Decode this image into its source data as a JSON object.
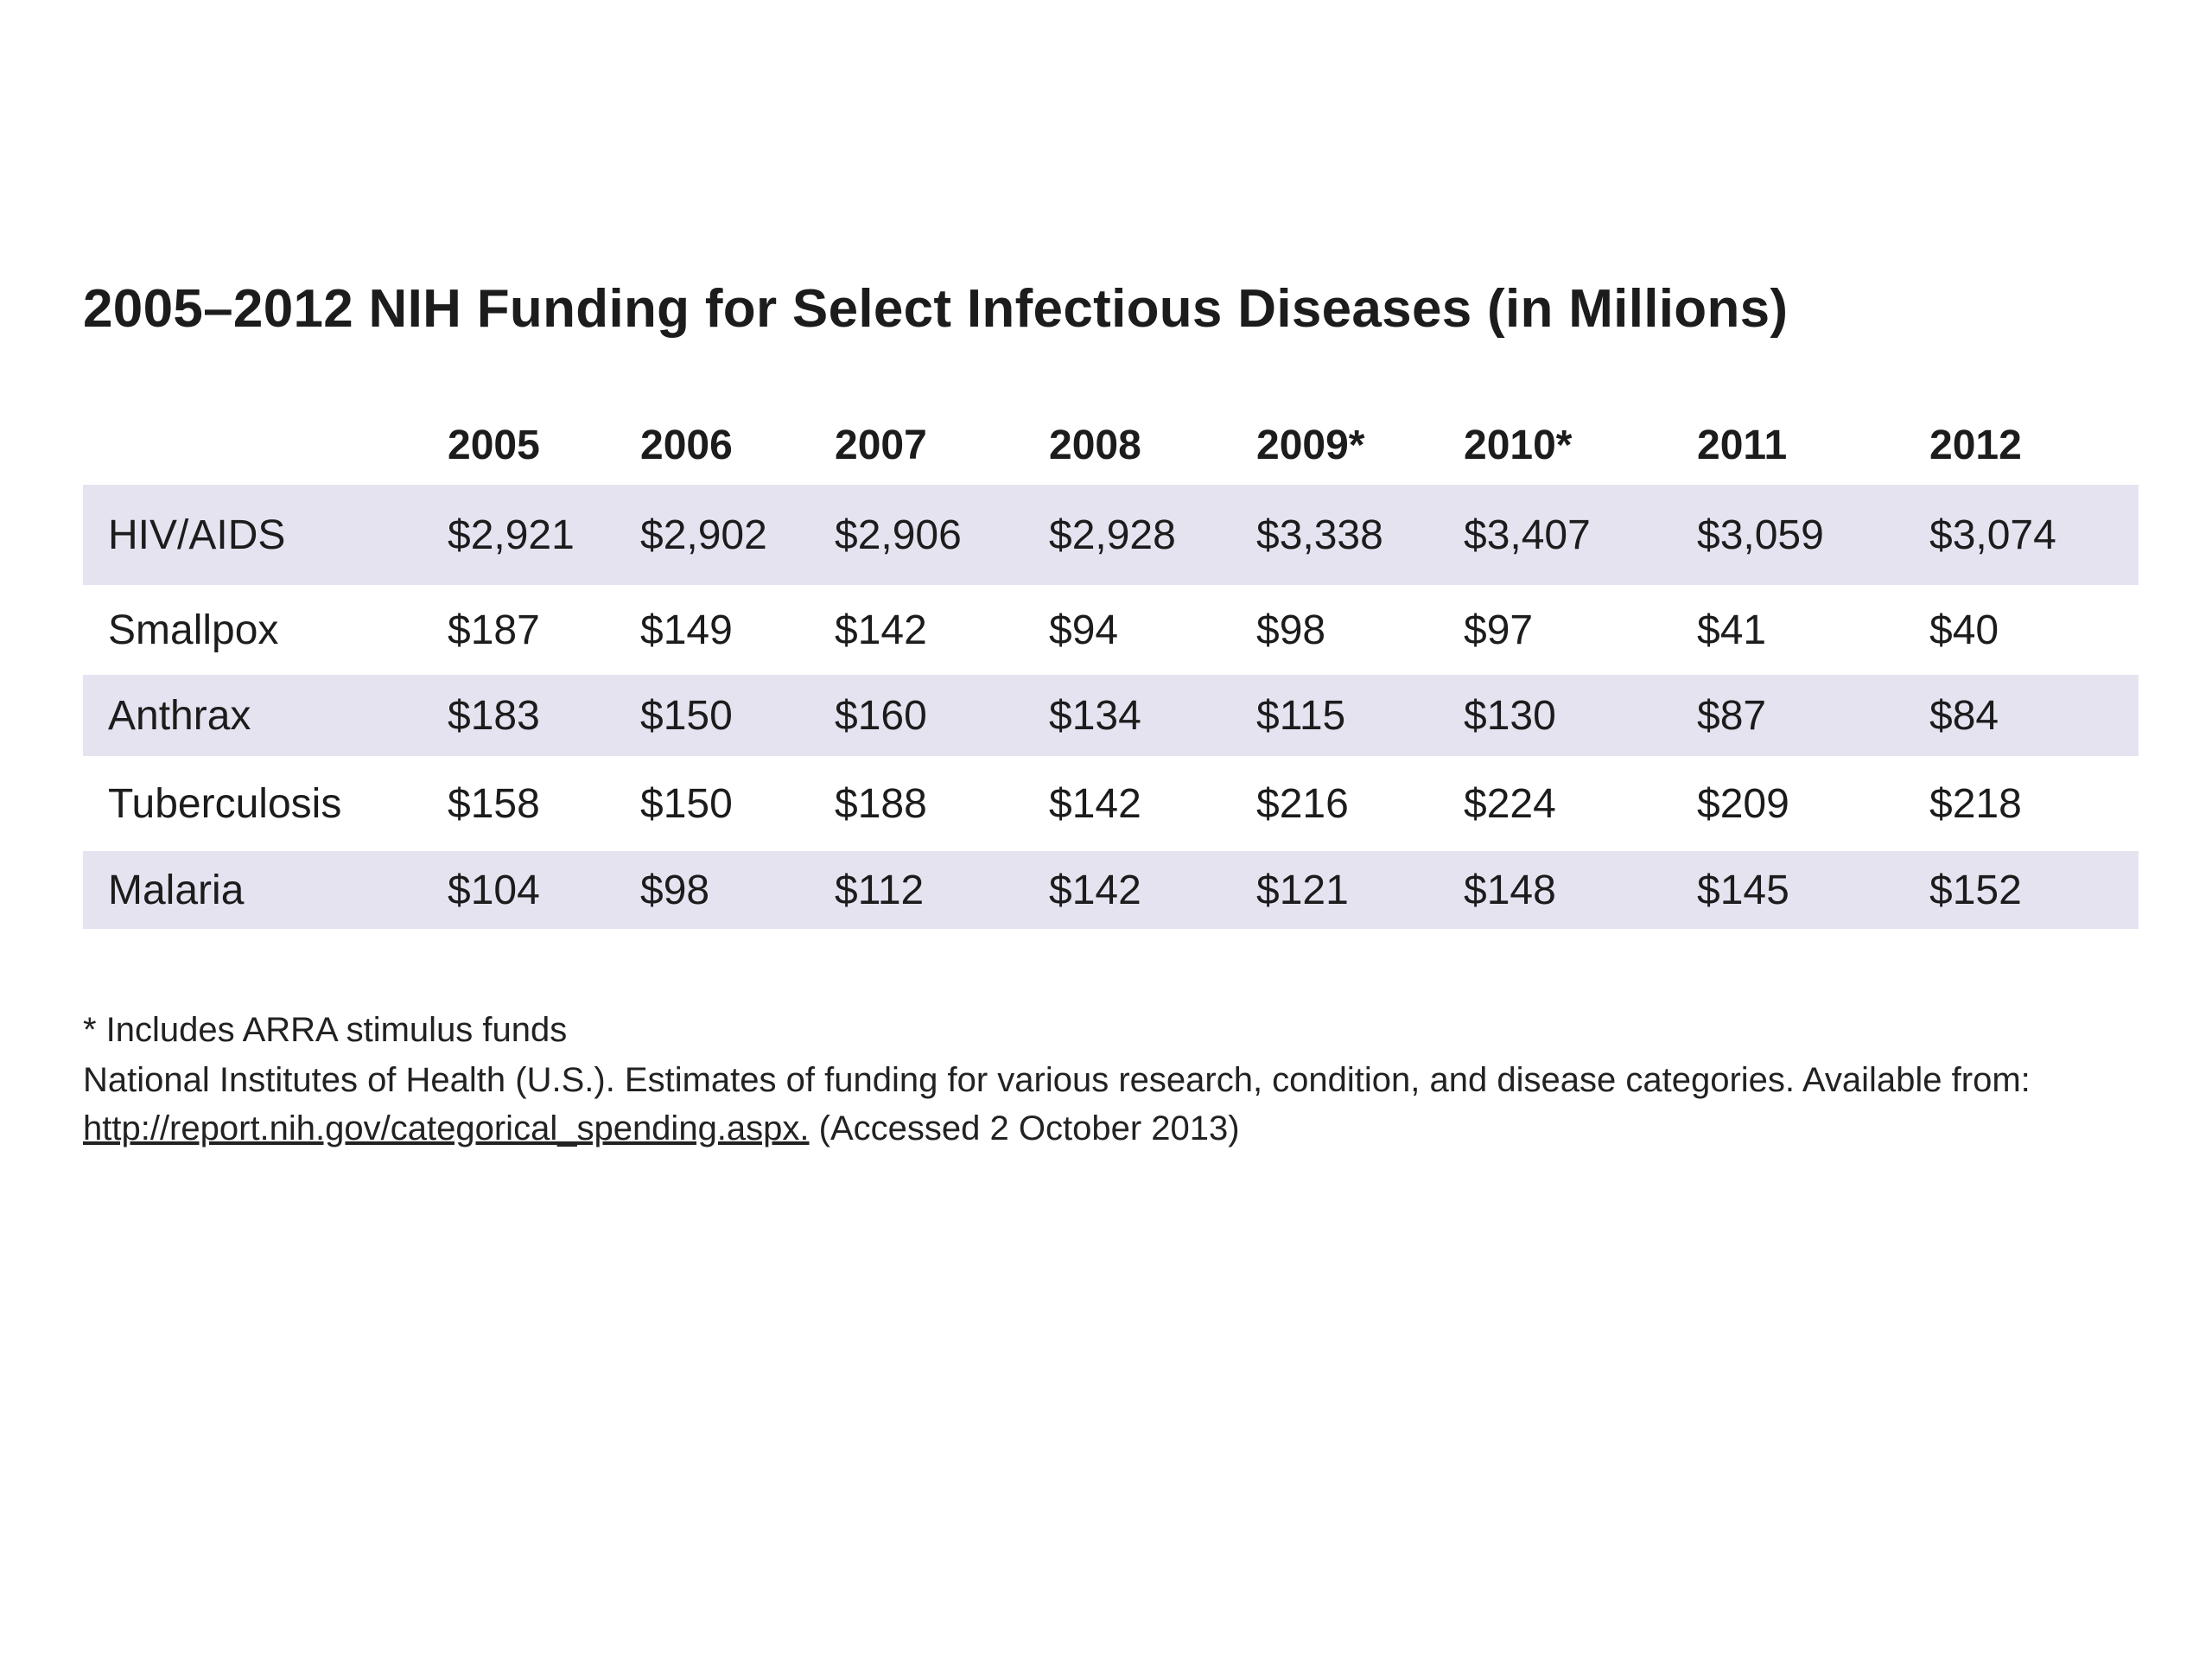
{
  "title": "2005–2012 NIH Funding for Select Infectious Diseases (in Millions)",
  "chart_data": {
    "type": "table",
    "title": "2005–2012 NIH Funding for Select Infectious Diseases (in Millions)",
    "columns": [
      "2005",
      "2006",
      "2007",
      "2008",
      "2009*",
      "2010*",
      "2011",
      "2012"
    ],
    "rows": [
      {
        "label": "HIV/AIDS",
        "cells": [
          "$2,921",
          "$2,902",
          "$2,906",
          "$2,928",
          "$3,338",
          "$3,407",
          "$3,059",
          "$3,074"
        ]
      },
      {
        "label": "Smallpox",
        "cells": [
          "$187",
          "$149",
          "$142",
          "$94",
          "$98",
          "$97",
          "$41",
          "$40"
        ]
      },
      {
        "label": "Anthrax",
        "cells": [
          "$183",
          "$150",
          "$160",
          "$134",
          "$115",
          "$130",
          "$87",
          "$84"
        ]
      },
      {
        "label": "Tuberculosis",
        "cells": [
          "$158",
          "$150",
          "$188",
          "$142",
          "$216",
          "$224",
          "$209",
          "$218"
        ]
      },
      {
        "label": "Malaria",
        "cells": [
          "$104",
          "$98",
          "$112",
          "$142",
          "$121",
          "$148",
          "$145",
          "$152"
        ]
      }
    ],
    "values": {
      "HIV/AIDS": [
        2921,
        2902,
        2906,
        2928,
        3338,
        3407,
        3059,
        3074
      ],
      "Smallpox": [
        187,
        149,
        142,
        94,
        98,
        97,
        41,
        40
      ],
      "Anthrax": [
        183,
        150,
        160,
        134,
        115,
        130,
        87,
        84
      ],
      "Tuberculosis": [
        158,
        150,
        188,
        142,
        216,
        224,
        209,
        218
      ],
      "Malaria": [
        104,
        98,
        112,
        142,
        121,
        148,
        145,
        152
      ]
    },
    "shaded_row_color": "#e6e3f1"
  },
  "footnote": "* Includes ARRA stimulus funds",
  "source": {
    "text_before": "National Institutes of Health (U.S.). Estimates of funding for various research, condition, and disease categories. Available from:",
    "link": "http://report.nih.gov/categorical_spending.aspx.",
    "text_after": "(Accessed 2 October 2013)"
  }
}
